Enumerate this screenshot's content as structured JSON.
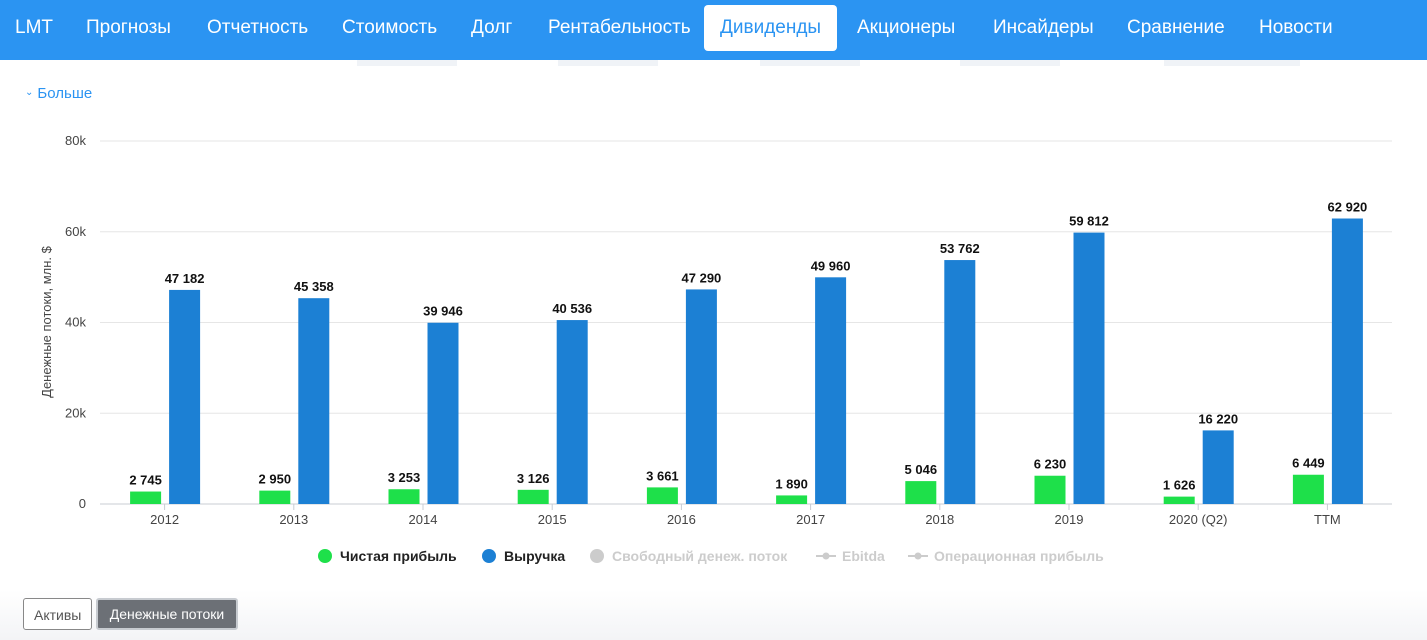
{
  "nav": {
    "items": [
      {
        "label": "LMT",
        "active": false
      },
      {
        "label": "Прогнозы",
        "active": false
      },
      {
        "label": "Отчетность",
        "active": false
      },
      {
        "label": "Стоимость",
        "active": false
      },
      {
        "label": "Долг",
        "active": false
      },
      {
        "label": "Рентабельность",
        "active": false
      },
      {
        "label": "Дивиденды",
        "active": true
      },
      {
        "label": "Акционеры",
        "active": false
      },
      {
        "label": "Инсайдеры",
        "active": false
      },
      {
        "label": "Сравнение",
        "active": false
      },
      {
        "label": "Новости",
        "active": false
      }
    ]
  },
  "more_link": "Больше",
  "chart_data": {
    "type": "bar",
    "title": "",
    "xlabel": "",
    "ylabel": "Денежные потоки, млн. $",
    "ylim": [
      0,
      80000
    ],
    "yticks": [
      0,
      20000,
      40000,
      60000,
      80000
    ],
    "ytick_labels": [
      "0",
      "20k",
      "40k",
      "60k",
      "80k"
    ],
    "categories": [
      "2012",
      "2013",
      "2014",
      "2015",
      "2016",
      "2017",
      "2018",
      "2019",
      "2020 (Q2)",
      "TTM"
    ],
    "series": [
      {
        "name": "Чистая прибыль",
        "color": "#1ee04a",
        "values": [
          2745,
          2950,
          3253,
          3126,
          3661,
          1890,
          5046,
          6230,
          1626,
          6449
        ],
        "labels": [
          "2 745",
          "2 950",
          "3 253",
          "3 126",
          "3 661",
          "1 890",
          "5 046",
          "6 230",
          "1 626",
          "6 449"
        ]
      },
      {
        "name": "Выручка",
        "color": "#1c80d4",
        "values": [
          47182,
          45358,
          39946,
          40536,
          47290,
          49960,
          53762,
          59812,
          16220,
          62920
        ],
        "labels": [
          "47 182",
          "45 358",
          "39 946",
          "40 536",
          "47 290",
          "49 960",
          "53 762",
          "59 812",
          "16 220",
          "62 920"
        ]
      }
    ],
    "legend": [
      {
        "name": "Чистая прибыль",
        "kind": "dot",
        "color": "#1ee04a",
        "text_color": "#222222"
      },
      {
        "name": "Выручка",
        "kind": "dot",
        "color": "#1c80d4",
        "text_color": "#222222"
      },
      {
        "name": "Свободный денеж. поток",
        "kind": "dot",
        "color": "#cccccc",
        "text_color": "#cccccc"
      },
      {
        "name": "Ebitda",
        "kind": "line",
        "color": "#cccccc",
        "text_color": "#cccccc"
      },
      {
        "name": "Операционная прибыль",
        "kind": "line",
        "color": "#cccccc",
        "text_color": "#cccccc"
      }
    ],
    "legend_position": "bottom-center",
    "grid": true
  },
  "tabs": {
    "assets": "Активы",
    "cash_flows": "Денежные потоки"
  },
  "colors": {
    "nav_bg": "#2b94f2",
    "accent": "#2b94f2"
  }
}
